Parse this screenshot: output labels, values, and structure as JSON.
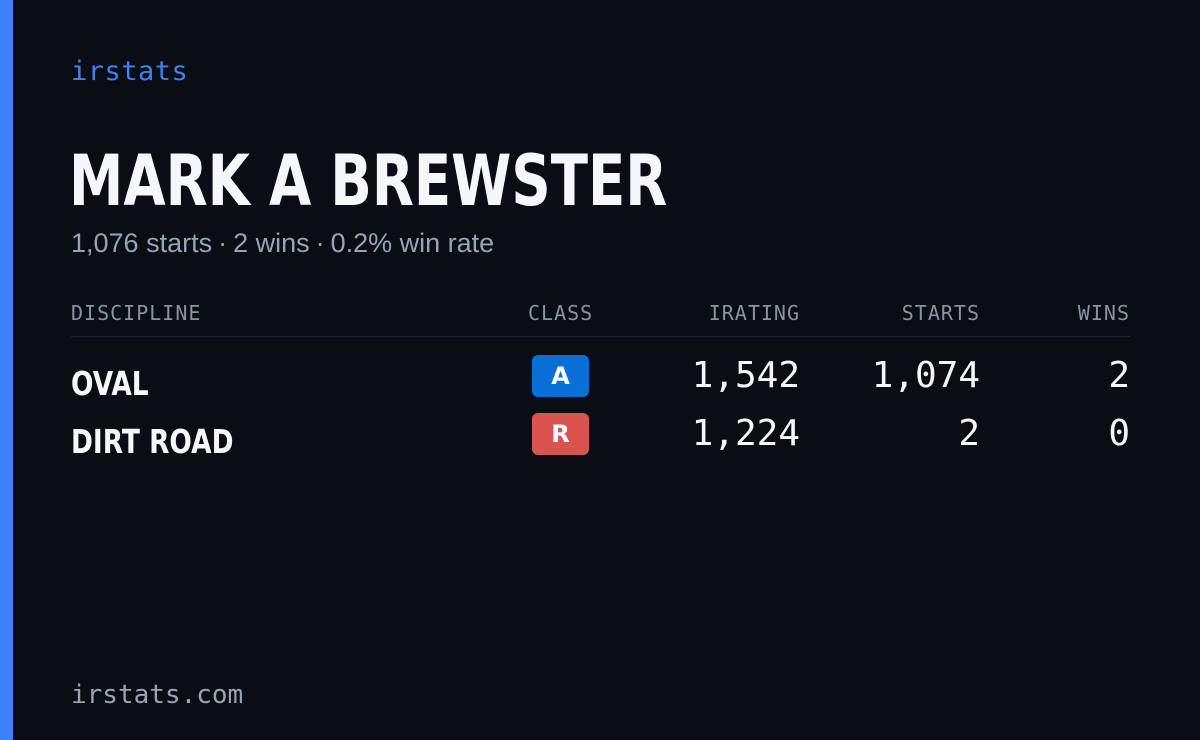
{
  "brand": "irstats",
  "driver": {
    "name": "MARK A BREWSTER",
    "starts_text": "1,076 starts",
    "wins_text": "2 wins",
    "win_rate_text": "0.2% win rate",
    "separator": "·"
  },
  "table": {
    "headers": {
      "discipline": "DISCIPLINE",
      "class": "CLASS",
      "irating": "IRATING",
      "starts": "STARTS",
      "wins": "WINS"
    },
    "rows": [
      {
        "discipline": "OVAL",
        "class": "A",
        "class_color": "#0b6fd8",
        "irating": "1,542",
        "starts": "1,074",
        "wins": "2"
      },
      {
        "discipline": "DIRT ROAD",
        "class": "R",
        "class_color": "#d9534f",
        "irating": "1,224",
        "starts": "2",
        "wins": "0"
      }
    ]
  },
  "footer": "irstats.com",
  "colors": {
    "accent": "#3b82f6",
    "background": "#0a0d14"
  }
}
